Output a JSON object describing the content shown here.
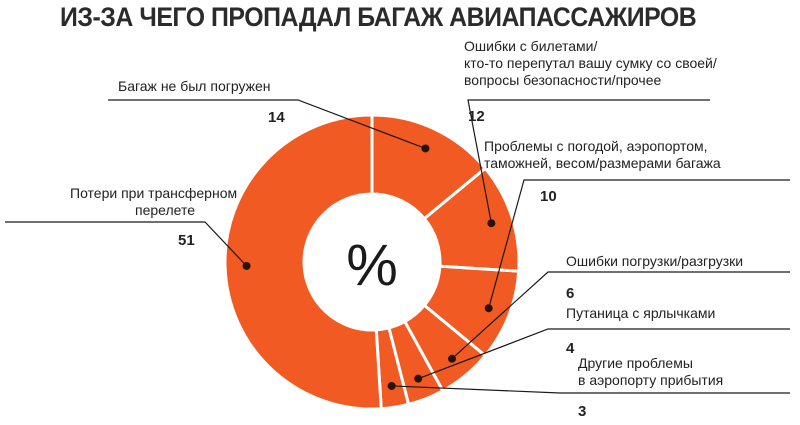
{
  "title": "ИЗ-ЗА ЧЕГО ПРОПАДАЛ БАГАЖ АВИАПАССАЖИРОВ",
  "center_symbol": "%",
  "chart_data": {
    "type": "pie",
    "variant": "donut",
    "title": "ИЗ-ЗА ЧЕГО ПРОПАДАЛ БАГАЖ АВИАПАССАЖИРОВ",
    "unit": "%",
    "slices": [
      {
        "label_lines": [
          "Багаж не был погружен"
        ],
        "value": 14
      },
      {
        "label_lines": [
          "Ошибки с билетами/",
          "кто-то перепутал вашу сумку со своей/",
          "вопросы безопасности/прочее"
        ],
        "value": 12
      },
      {
        "label_lines": [
          "Проблемы с погодой, аэропортом,",
          "таможней, весом/размерами багажа"
        ],
        "value": 10
      },
      {
        "label_lines": [
          "Ошибки погрузки/разгрузки"
        ],
        "value": 6
      },
      {
        "label_lines": [
          "Путаница с ярлычками"
        ],
        "value": 4
      },
      {
        "label_lines": [
          "Другие проблемы",
          "в аэропорту прибытия"
        ],
        "value": 3
      },
      {
        "label_lines": [
          "Потери при трансферном",
          "перелете"
        ],
        "value": 51
      }
    ],
    "colors": {
      "slice": "#f15a22",
      "separator": "#ffffff",
      "leader": "#1a1a1a",
      "dot": "#2a1208"
    }
  }
}
